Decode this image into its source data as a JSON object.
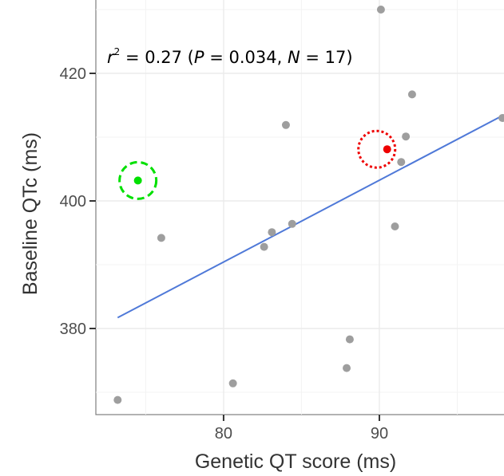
{
  "chart_data": {
    "type": "scatter",
    "title": "",
    "xlabel": "Genetic QT score (ms)",
    "ylabel": "Baseline QTc (ms)",
    "xlim": [
      71.8,
      98.0
    ],
    "ylim": [
      366.5,
      431.5
    ],
    "x_ticks": [
      80,
      90
    ],
    "y_ticks": [
      380,
      400,
      420
    ],
    "x_tick_labels": [
      "80",
      "90"
    ],
    "y_tick_labels": [
      "380",
      "400",
      "420"
    ],
    "grid": true,
    "annotation": {
      "r_label": "r",
      "r_exp": "2",
      "r_value": " = 0.27 (",
      "p_label": "P",
      "p_value": " = 0.034, ",
      "n_label": "N",
      "n_value": " = 17)"
    },
    "points": [
      {
        "x": 73.2,
        "y": 368.8
      },
      {
        "x": 76.0,
        "y": 394.2
      },
      {
        "x": 80.6,
        "y": 371.4
      },
      {
        "x": 82.6,
        "y": 392.8
      },
      {
        "x": 83.1,
        "y": 395.1
      },
      {
        "x": 84.0,
        "y": 411.9
      },
      {
        "x": 84.4,
        "y": 396.4
      },
      {
        "x": 87.9,
        "y": 373.8
      },
      {
        "x": 88.1,
        "y": 378.3
      },
      {
        "x": 90.1,
        "y": 430.0
      },
      {
        "x": 91.0,
        "y": 396.0
      },
      {
        "x": 91.4,
        "y": 406.1
      },
      {
        "x": 91.7,
        "y": 410.1
      },
      {
        "x": 92.1,
        "y": 416.7
      },
      {
        "x": 97.9,
        "y": 413.0
      }
    ],
    "highlight_green": {
      "x": 74.5,
      "y": 403.2
    },
    "highlight_red": {
      "x": 90.5,
      "y": 408.1
    },
    "trend_line": {
      "x": [
        73.2,
        98.0
      ],
      "y": [
        381.7,
        413.5
      ]
    },
    "colors": {
      "point": "#9e9e9e",
      "green": "#00e000",
      "red": "#ee0000",
      "line": "#4f79d8",
      "grid": "#ebebeb",
      "border": "#7f7f7f"
    }
  }
}
